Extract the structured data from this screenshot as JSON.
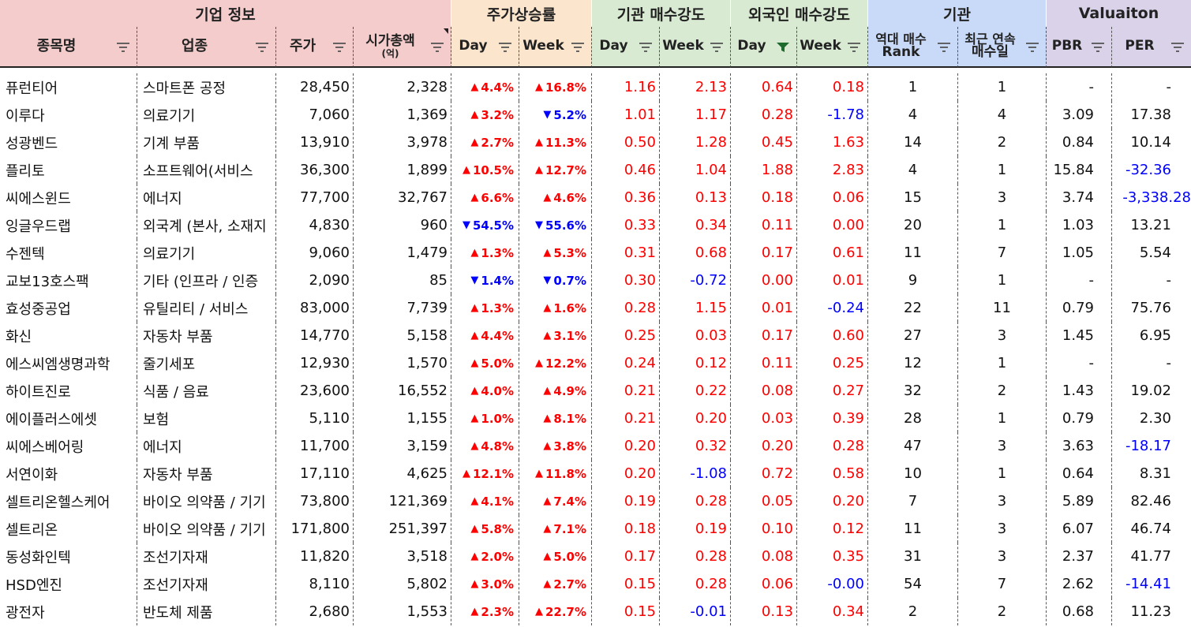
{
  "groups": [
    {
      "label": "기업 정보",
      "bg": "#f4cccc"
    },
    {
      "label": "주가상승률",
      "bg": "#fce5cd"
    },
    {
      "label": "기관 매수강도",
      "bg": "#d9ead3"
    },
    {
      "label": "외국인 매수강도",
      "bg": "#d9ead3"
    },
    {
      "label": "기관",
      "bg": "#c9daf8"
    },
    {
      "label": "Valuaiton",
      "bg": "#d9d2e9"
    }
  ],
  "columns": [
    {
      "line1": "종목명",
      "line2": ""
    },
    {
      "line1": "업종",
      "line2": ""
    },
    {
      "line1": "주가",
      "line2": ""
    },
    {
      "line1": "시가총액",
      "line2": "(억)"
    },
    {
      "line1": "Day",
      "line2": ""
    },
    {
      "line1": "Week",
      "line2": ""
    },
    {
      "line1": "Day",
      "line2": ""
    },
    {
      "line1": "Week",
      "line2": ""
    },
    {
      "line1": "Day",
      "line2": ""
    },
    {
      "line1": "Week",
      "line2": ""
    },
    {
      "line1": "역대 매수",
      "line2": "Rank"
    },
    {
      "line1": "최근 연속",
      "line2": "매수일"
    },
    {
      "line1": "PBR",
      "line2": ""
    },
    {
      "line1": "PER",
      "line2": ""
    }
  ],
  "active_filter_column": 8,
  "colors": {
    "up": "#ff0000",
    "down": "#0000ff",
    "filter_icon": "#555555",
    "filter_active": "#1e6b2e"
  },
  "rows": [
    {
      "name": "퓨런티어",
      "sector": "스마트폰 공정",
      "price": "28,450",
      "mcap": "2,328",
      "day_dir": "up",
      "day": "4.4%",
      "week_dir": "up",
      "week": "16.8%",
      "inst_day": "1.16",
      "inst_week": "2.13",
      "frgn_day": "0.64",
      "frgn_week": "0.18",
      "rank": "1",
      "streak": "1",
      "pbr": "-",
      "per": "-"
    },
    {
      "name": "이루다",
      "sector": "의료기기",
      "price": "7,060",
      "mcap": "1,369",
      "day_dir": "up",
      "day": "3.2%",
      "week_dir": "down",
      "week": "5.2%",
      "inst_day": "1.01",
      "inst_week": "1.17",
      "frgn_day": "0.28",
      "frgn_week": "-1.78",
      "rank": "4",
      "streak": "4",
      "pbr": "3.09",
      "per": "17.38"
    },
    {
      "name": "성광벤드",
      "sector": "기계 부품",
      "price": "13,910",
      "mcap": "3,978",
      "day_dir": "up",
      "day": "2.7%",
      "week_dir": "up",
      "week": "11.3%",
      "inst_day": "0.50",
      "inst_week": "1.28",
      "frgn_day": "0.45",
      "frgn_week": "1.63",
      "rank": "14",
      "streak": "2",
      "pbr": "0.84",
      "per": "10.14"
    },
    {
      "name": "플리토",
      "sector": "소프트웨어(서비스",
      "price": "36,300",
      "mcap": "1,899",
      "day_dir": "up",
      "day": "10.5%",
      "week_dir": "up",
      "week": "12.7%",
      "inst_day": "0.46",
      "inst_week": "1.04",
      "frgn_day": "1.88",
      "frgn_week": "2.83",
      "rank": "4",
      "streak": "1",
      "pbr": "15.84",
      "per": "-32.36"
    },
    {
      "name": "씨에스윈드",
      "sector": "에너지",
      "price": "77,700",
      "mcap": "32,767",
      "day_dir": "up",
      "day": "6.6%",
      "week_dir": "up",
      "week": "4.6%",
      "inst_day": "0.36",
      "inst_week": "0.13",
      "frgn_day": "0.18",
      "frgn_week": "0.06",
      "rank": "15",
      "streak": "3",
      "pbr": "3.74",
      "per": "-3,338.28"
    },
    {
      "name": "잉글우드랩",
      "sector": "외국계 (본사, 소재지",
      "price": "4,830",
      "mcap": "960",
      "day_dir": "down",
      "day": "54.5%",
      "week_dir": "down",
      "week": "55.6%",
      "inst_day": "0.33",
      "inst_week": "0.34",
      "frgn_day": "0.11",
      "frgn_week": "0.00",
      "rank": "20",
      "streak": "1",
      "pbr": "1.03",
      "per": "13.21"
    },
    {
      "name": "수젠텍",
      "sector": "의료기기",
      "price": "9,060",
      "mcap": "1,479",
      "day_dir": "up",
      "day": "1.3%",
      "week_dir": "up",
      "week": "5.3%",
      "inst_day": "0.31",
      "inst_week": "0.68",
      "frgn_day": "0.17",
      "frgn_week": "0.61",
      "rank": "11",
      "streak": "7",
      "pbr": "1.05",
      "per": "5.54"
    },
    {
      "name": "교보13호스팩",
      "sector": "기타 (인프라 / 인증",
      "price": "2,090",
      "mcap": "85",
      "day_dir": "down",
      "day": "1.4%",
      "week_dir": "down",
      "week": "0.7%",
      "inst_day": "0.30",
      "inst_week": "-0.72",
      "frgn_day": "0.00",
      "frgn_week": "0.01",
      "rank": "9",
      "streak": "1",
      "pbr": "-",
      "per": "-"
    },
    {
      "name": "효성중공업",
      "sector": "유틸리티 / 서비스",
      "price": "83,000",
      "mcap": "7,739",
      "day_dir": "up",
      "day": "1.3%",
      "week_dir": "up",
      "week": "1.6%",
      "inst_day": "0.28",
      "inst_week": "1.15",
      "frgn_day": "0.01",
      "frgn_week": "-0.24",
      "rank": "22",
      "streak": "11",
      "pbr": "0.79",
      "per": "75.76"
    },
    {
      "name": "화신",
      "sector": "자동차 부품",
      "price": "14,770",
      "mcap": "5,158",
      "day_dir": "up",
      "day": "4.4%",
      "week_dir": "up",
      "week": "3.1%",
      "inst_day": "0.25",
      "inst_week": "0.03",
      "frgn_day": "0.17",
      "frgn_week": "0.60",
      "rank": "27",
      "streak": "3",
      "pbr": "1.45",
      "per": "6.95"
    },
    {
      "name": "에스씨엠생명과학",
      "sector": "줄기세포",
      "price": "12,930",
      "mcap": "1,570",
      "day_dir": "up",
      "day": "5.0%",
      "week_dir": "up",
      "week": "12.2%",
      "inst_day": "0.24",
      "inst_week": "0.12",
      "frgn_day": "0.11",
      "frgn_week": "0.25",
      "rank": "12",
      "streak": "1",
      "pbr": "-",
      "per": "-"
    },
    {
      "name": "하이트진로",
      "sector": "식품 / 음료",
      "price": "23,600",
      "mcap": "16,552",
      "day_dir": "up",
      "day": "4.0%",
      "week_dir": "up",
      "week": "4.9%",
      "inst_day": "0.21",
      "inst_week": "0.22",
      "frgn_day": "0.08",
      "frgn_week": "0.27",
      "rank": "32",
      "streak": "2",
      "pbr": "1.43",
      "per": "19.02"
    },
    {
      "name": "에이플러스에셋",
      "sector": "보험",
      "price": "5,110",
      "mcap": "1,155",
      "day_dir": "up",
      "day": "1.0%",
      "week_dir": "up",
      "week": "8.1%",
      "inst_day": "0.21",
      "inst_week": "0.20",
      "frgn_day": "0.03",
      "frgn_week": "0.39",
      "rank": "28",
      "streak": "1",
      "pbr": "0.79",
      "per": "2.30"
    },
    {
      "name": "씨에스베어링",
      "sector": "에너지",
      "price": "11,700",
      "mcap": "3,159",
      "day_dir": "up",
      "day": "4.8%",
      "week_dir": "up",
      "week": "3.8%",
      "inst_day": "0.20",
      "inst_week": "0.32",
      "frgn_day": "0.20",
      "frgn_week": "0.28",
      "rank": "47",
      "streak": "3",
      "pbr": "3.63",
      "per": "-18.17"
    },
    {
      "name": "서연이화",
      "sector": "자동차 부품",
      "price": "17,110",
      "mcap": "4,625",
      "day_dir": "up",
      "day": "12.1%",
      "week_dir": "up",
      "week": "11.8%",
      "inst_day": "0.20",
      "inst_week": "-1.08",
      "frgn_day": "0.72",
      "frgn_week": "0.58",
      "rank": "10",
      "streak": "1",
      "pbr": "0.64",
      "per": "8.31"
    },
    {
      "name": "셀트리온헬스케어",
      "sector": "바이오 의약품 / 기기",
      "price": "73,800",
      "mcap": "121,369",
      "day_dir": "up",
      "day": "4.1%",
      "week_dir": "up",
      "week": "7.4%",
      "inst_day": "0.19",
      "inst_week": "0.28",
      "frgn_day": "0.05",
      "frgn_week": "0.20",
      "rank": "7",
      "streak": "3",
      "pbr": "5.89",
      "per": "82.46"
    },
    {
      "name": "셀트리온",
      "sector": "바이오 의약품 / 기기",
      "price": "171,800",
      "mcap": "251,397",
      "day_dir": "up",
      "day": "5.8%",
      "week_dir": "up",
      "week": "7.1%",
      "inst_day": "0.18",
      "inst_week": "0.19",
      "frgn_day": "0.10",
      "frgn_week": "0.12",
      "rank": "11",
      "streak": "3",
      "pbr": "6.07",
      "per": "46.74"
    },
    {
      "name": "동성화인텍",
      "sector": "조선기자재",
      "price": "11,820",
      "mcap": "3,518",
      "day_dir": "up",
      "day": "2.0%",
      "week_dir": "up",
      "week": "5.0%",
      "inst_day": "0.17",
      "inst_week": "0.28",
      "frgn_day": "0.08",
      "frgn_week": "0.35",
      "rank": "31",
      "streak": "3",
      "pbr": "2.37",
      "per": "41.77"
    },
    {
      "name": "HSD엔진",
      "sector": "조선기자재",
      "price": "8,110",
      "mcap": "5,802",
      "day_dir": "up",
      "day": "3.0%",
      "week_dir": "up",
      "week": "2.7%",
      "inst_day": "0.15",
      "inst_week": "0.28",
      "frgn_day": "0.06",
      "frgn_week": "-0.00",
      "rank": "54",
      "streak": "7",
      "pbr": "2.62",
      "per": "-14.41"
    },
    {
      "name": "광전자",
      "sector": "반도체 제품",
      "price": "2,680",
      "mcap": "1,553",
      "day_dir": "up",
      "day": "2.3%",
      "week_dir": "up",
      "week": "22.7%",
      "inst_day": "0.15",
      "inst_week": "-0.01",
      "frgn_day": "0.13",
      "frgn_week": "0.34",
      "rank": "2",
      "streak": "2",
      "pbr": "0.68",
      "per": "11.23"
    }
  ]
}
